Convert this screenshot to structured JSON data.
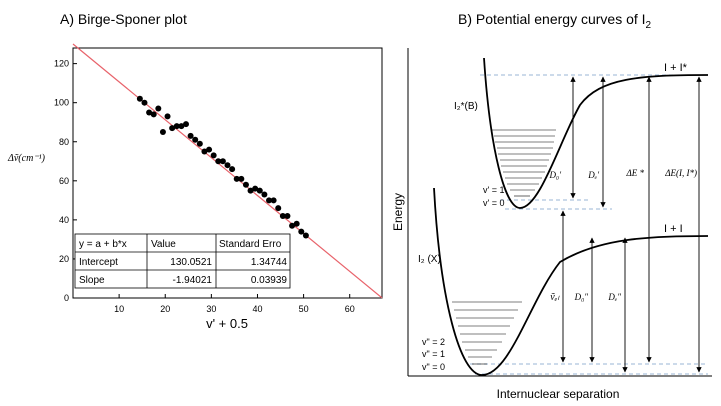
{
  "panel_a": {
    "title": "A) Birge-Sponer plot",
    "chart_data": {
      "type": "scatter",
      "title": "A) Birge-Sponer plot",
      "xlabel": "v' + 0.5",
      "ylabel": "Δṽ(cm⁻¹)",
      "xlim": [
        0,
        67
      ],
      "ylim": [
        0,
        128
      ],
      "xticks": [
        10,
        20,
        30,
        40,
        50,
        60
      ],
      "yticks": [
        0,
        20,
        40,
        60,
        80,
        100,
        120
      ],
      "points": [
        [
          14.5,
          102
        ],
        [
          15.5,
          100
        ],
        [
          16.5,
          95
        ],
        [
          17.5,
          94
        ],
        [
          18.5,
          97
        ],
        [
          19.5,
          85
        ],
        [
          20.5,
          93
        ],
        [
          21.5,
          87
        ],
        [
          22.5,
          88
        ],
        [
          23.5,
          88
        ],
        [
          24.5,
          89
        ],
        [
          25.5,
          83
        ],
        [
          26.5,
          81
        ],
        [
          27.5,
          79
        ],
        [
          28.5,
          75
        ],
        [
          29.5,
          76
        ],
        [
          30.5,
          73
        ],
        [
          31.5,
          70
        ],
        [
          32.5,
          70
        ],
        [
          33.5,
          68
        ],
        [
          34.5,
          66
        ],
        [
          35.5,
          61
        ],
        [
          36.5,
          61
        ],
        [
          37.5,
          58
        ],
        [
          38.5,
          55
        ],
        [
          39.5,
          56
        ],
        [
          40.5,
          55
        ],
        [
          41.5,
          53
        ],
        [
          42.5,
          50
        ],
        [
          43.5,
          50
        ],
        [
          44.5,
          46
        ],
        [
          45.5,
          42
        ],
        [
          46.5,
          42
        ],
        [
          47.5,
          37
        ],
        [
          48.5,
          38
        ],
        [
          49.5,
          34
        ],
        [
          50.5,
          32
        ]
      ],
      "fit_line": {
        "intercept": 130.0521,
        "slope": -1.94021,
        "x_range": [
          0,
          67
        ]
      },
      "fit_table": {
        "headers": [
          "y = a + b*x",
          "Value",
          "Standard Erro"
        ],
        "rows": [
          [
            "Intercept",
            "130.0521",
            "1.34744"
          ],
          [
            "Slope",
            "-1.94021",
            "0.03939"
          ]
        ]
      },
      "colors": {
        "points": "#000000",
        "fit_line": "#e8636b"
      }
    }
  },
  "panel_b": {
    "title_prefix": "B) Potential energy curves of I",
    "title_sub": "2",
    "chart_data": {
      "type": "diagram",
      "xlabel": "Internuclear separation",
      "ylabel": "Energy",
      "excited_state_label": "I₂*(B)",
      "ground_state_label": "I₂ (X)",
      "excited_asymptote_label": "I + I*",
      "ground_asymptote_label": "I + I",
      "excited_level_labels": [
        "v' = 1",
        "v' = 0"
      ],
      "ground_level_labels": [
        "v\" = 2",
        "v\" = 1",
        "v\" = 0"
      ],
      "arrow_labels": {
        "d0_excited": "D₀'",
        "de_excited": "Dₑ'",
        "delta_e_star": "ΔE *",
        "delta_e_total": "ΔE(I, I*)",
        "nu_el": "ṽₑₗ",
        "d0_ground": "D₀\"",
        "de_ground": "Dₑ\""
      },
      "colors": {
        "dashed": "#7a9cc8",
        "curve": "#000000"
      }
    }
  }
}
